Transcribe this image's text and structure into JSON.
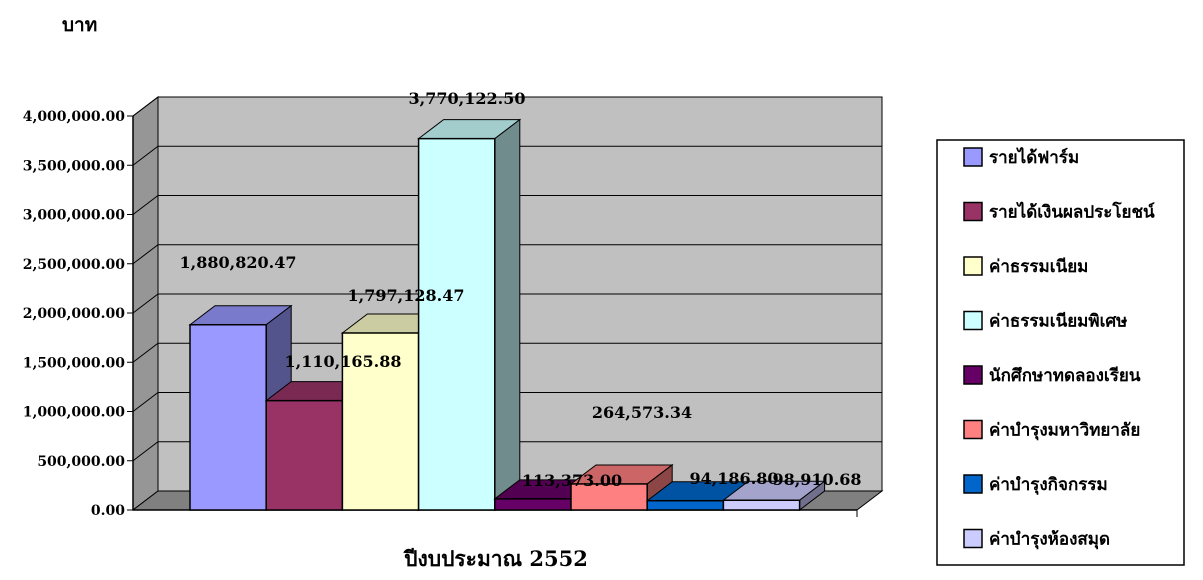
{
  "chart_data": {
    "type": "bar",
    "title": "",
    "ylabel": "บาท",
    "xlabel": "ปีงบประมาณ 2552",
    "ylim": [
      0,
      4000000
    ],
    "yticks": [
      0,
      500000,
      1000000,
      1500000,
      2000000,
      2500000,
      3000000,
      3500000,
      4000000
    ],
    "ytick_labels": [
      "0.00",
      "500,000.00",
      "1,000,000.00",
      "1,500,000.00",
      "2,000,000.00",
      "2,500,000.00",
      "3,000,000.00",
      "3,500,000.00",
      "4,000,000.00"
    ],
    "grid": true,
    "legend_position": "right",
    "series": [
      {
        "name": "รายได้ฟาร์ม",
        "value": 1880820.47,
        "label": "1,880,820.47",
        "color": "#9999ff"
      },
      {
        "name": "รายได้เงินผลประโยชน์",
        "value": 1110165.88,
        "label": "1,110,165.88",
        "color": "#993366"
      },
      {
        "name": "ค่าธรรมเนียม",
        "value": 1797128.47,
        "label": "1,797,128.47",
        "color": "#ffffcc"
      },
      {
        "name": "ค่าธรรมเนียมพิเศษ",
        "value": 3770122.5,
        "label": "3,770,122.50",
        "color": "#ccffff"
      },
      {
        "name": "นักศึกษาทดลองเรียน",
        "value": 113373.0,
        "label": "113,373.00",
        "color": "#660066"
      },
      {
        "name": "ค่าบำรุงมหาวิทยาลัย",
        "value": 264573.34,
        "label": "264,573.34",
        "color": "#ff8080"
      },
      {
        "name": "ค่าบำรุงกิจกรรม",
        "value": 94186.8,
        "label": "94,186.80",
        "color": "#0066cc"
      },
      {
        "name": "ค่าบำรุงห้องสมุด",
        "value": 98910.68,
        "label": "98,910.68",
        "color": "#ccccff"
      }
    ],
    "colors": {
      "plot_back": "#c0c0c0",
      "floor": "#808080",
      "side_wall": "#969696"
    }
  }
}
